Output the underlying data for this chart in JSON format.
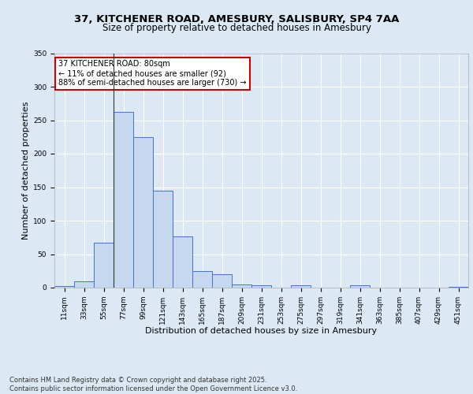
{
  "title_line1": "37, KITCHENER ROAD, AMESBURY, SALISBURY, SP4 7AA",
  "title_line2": "Size of property relative to detached houses in Amesbury",
  "xlabel": "Distribution of detached houses by size in Amesbury",
  "ylabel": "Number of detached properties",
  "bins": [
    "11sqm",
    "33sqm",
    "55sqm",
    "77sqm",
    "99sqm",
    "121sqm",
    "143sqm",
    "165sqm",
    "187sqm",
    "209sqm",
    "231sqm",
    "253sqm",
    "275sqm",
    "297sqm",
    "319sqm",
    "341sqm",
    "363sqm",
    "385sqm",
    "407sqm",
    "429sqm",
    "451sqm"
  ],
  "values": [
    2,
    9,
    67,
    262,
    225,
    145,
    76,
    25,
    20,
    5,
    4,
    0,
    3,
    0,
    0,
    3,
    0,
    0,
    0,
    0,
    1
  ],
  "bar_color": "#c5d8f0",
  "bar_edge_color": "#4472c4",
  "annotation_text": "37 KITCHENER ROAD: 80sqm\n← 11% of detached houses are smaller (92)\n88% of semi-detached houses are larger (730) →",
  "annotation_box_color": "#ffffff",
  "annotation_box_edge_color": "#cc0000",
  "vline_x_index": 3,
  "vline_color": "#333333",
  "ylim": [
    0,
    350
  ],
  "yticks": [
    0,
    50,
    100,
    150,
    200,
    250,
    300,
    350
  ],
  "background_color": "#dce9f5",
  "plot_bg_color": "#dce9f5",
  "grid_color": "#ffffff",
  "footer_text": "Contains HM Land Registry data © Crown copyright and database right 2025.\nContains public sector information licensed under the Open Government Licence v3.0.",
  "title_fontsize": 9.5,
  "subtitle_fontsize": 8.5,
  "xlabel_fontsize": 8,
  "ylabel_fontsize": 8,
  "tick_fontsize": 6.5,
  "annotation_fontsize": 7,
  "footer_fontsize": 6
}
